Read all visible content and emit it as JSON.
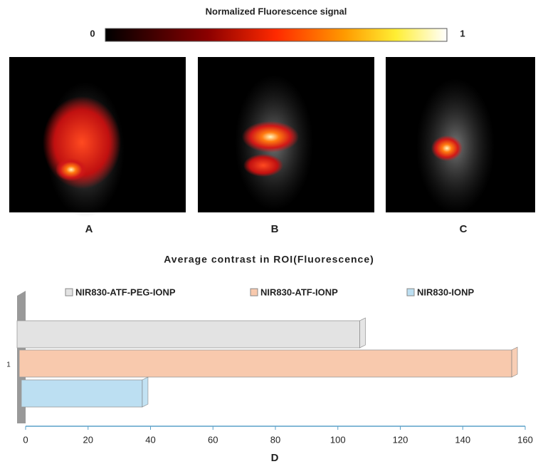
{
  "colorbar": {
    "title": "Normalized Fluorescence signal",
    "ticks": [
      0,
      1
    ]
  },
  "panels": {
    "labels": [
      "A",
      "B",
      "C"
    ]
  },
  "chart_data": {
    "type": "bar",
    "orientation": "horizontal",
    "title": "Average contrast in ROI(Fluorescence)",
    "categories": [
      "1"
    ],
    "series": [
      {
        "name": "NIR830-ATF-PEG-IONP",
        "color": "#e3e3e3",
        "values": [
          107
        ]
      },
      {
        "name": "NIR830-ATF-IONP",
        "color": "#f8c9ad",
        "values": [
          155
        ]
      },
      {
        "name": "NIR830-IONP",
        "color": "#bcdff2",
        "values": [
          36
        ]
      }
    ],
    "xlim": [
      0,
      160
    ],
    "xticks": [
      0,
      20,
      40,
      60,
      80,
      100,
      120,
      140,
      160
    ],
    "panel_label": "D"
  }
}
